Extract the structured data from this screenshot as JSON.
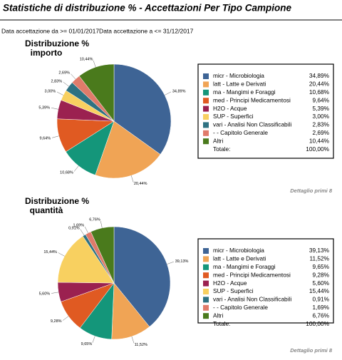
{
  "header": {
    "title": "Statistiche di distribuzione % - Accettazioni Per Tipo Campione",
    "filter": "Data accettazione da >= 01/01/2017Data accettazione a <= 31/12/2017"
  },
  "chart_data": [
    {
      "type": "pie",
      "title": "Distribuzione % importo",
      "categories": [
        "micr - Microbiologia",
        "latt - Latte e Derivati",
        "ma - Mangimi e Foraggi",
        "med - Principi Medicamentosi",
        "H2O - Acque",
        "SUP - Superfici",
        "vari - Analisi Non Classificabili",
        "- - Capitolo Generale",
        "Altri"
      ],
      "values": [
        34.89,
        20.44,
        10.68,
        9.64,
        5.39,
        3.0,
        2.83,
        2.69,
        10.44
      ],
      "value_labels": [
        "34,89%",
        "20,44%",
        "10,68%",
        "9,64%",
        "5,39%",
        "3,00%",
        "2,83%",
        "2,69%",
        "10,44%"
      ],
      "colors": [
        "#3e6495",
        "#f0a455",
        "#14967a",
        "#e05a22",
        "#9b2150",
        "#f8d060",
        "#2e7282",
        "#e07b6a",
        "#4a7a1c"
      ],
      "total_label": "Totale:",
      "total": "100,00%",
      "note": "Dettaglio primi 8"
    },
    {
      "type": "pie",
      "title": "Distribuzione % quantità",
      "categories": [
        "micr - Microbiologia",
        "latt - Latte e Derivati",
        "ma - Mangimi e Foraggi",
        "med - Principi Medicamentosi",
        "H2O - Acque",
        "SUP - Superfici",
        "vari - Analisi Non Classificabili",
        "- - Capitolo Generale",
        "Altri"
      ],
      "values": [
        39.13,
        11.52,
        9.65,
        9.28,
        5.6,
        15.44,
        0.91,
        1.69,
        6.76
      ],
      "value_labels": [
        "39,13%",
        "11,52%",
        "9,65%",
        "9,28%",
        "5,60%",
        "15,44%",
        "0,91%",
        "1,69%",
        "6,76%"
      ],
      "colors": [
        "#3e6495",
        "#f0a455",
        "#14967a",
        "#e05a22",
        "#9b2150",
        "#f8d060",
        "#2e7282",
        "#e07b6a",
        "#4a7a1c"
      ],
      "total_label": "Totale:",
      "total": "100,00%",
      "note": "Dettaglio primi 8"
    }
  ]
}
